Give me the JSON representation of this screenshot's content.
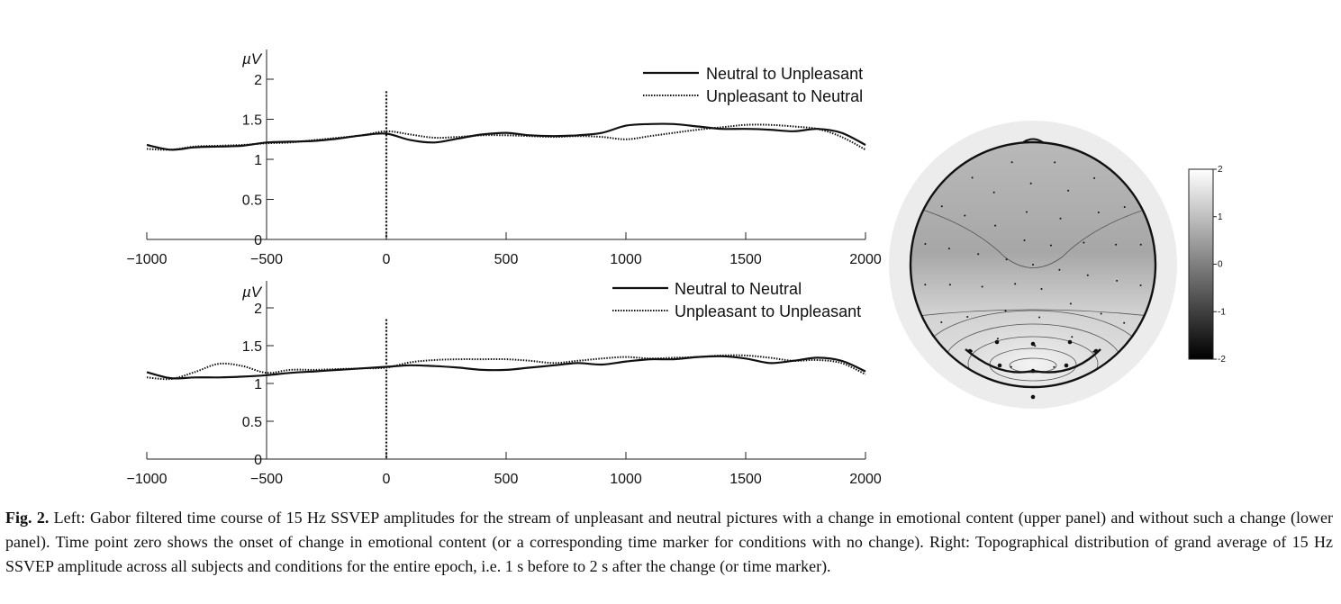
{
  "figure": {
    "caption_label": "Fig. 2.",
    "caption_text": " Left: Gabor filtered time course of 15 Hz SSVEP amplitudes for the stream of unpleasant and neutral pictures with a change in emotional content (upper panel) and without such a change (lower panel). Time point zero shows the onset of change in emotional content (or a corresponding time marker for conditions with no change). Right: Topographical distribution of grand average of 15 Hz SSVEP amplitude across all subjects and conditions for the entire epoch, i.e. 1 s before to 2 s after the change (or time marker)."
  },
  "chart_data": [
    {
      "type": "line",
      "title": "",
      "ylabel": "µV",
      "xlabel": "",
      "xlim": [
        -1000,
        2000
      ],
      "ylim": [
        0,
        2
      ],
      "xticks": [
        "−1000",
        "−500",
        "0",
        "500",
        "1000",
        "1500",
        "2000"
      ],
      "yticks": [
        "0",
        "0.5",
        "1",
        "1.5",
        "2"
      ],
      "legend_position": "top-right",
      "vline_x": 0,
      "x": [
        -1000,
        -900,
        -800,
        -700,
        -600,
        -500,
        -400,
        -300,
        -200,
        -100,
        0,
        100,
        200,
        300,
        400,
        500,
        600,
        700,
        800,
        900,
        1000,
        1100,
        1200,
        1300,
        1400,
        1500,
        1600,
        1700,
        1800,
        1900,
        2000
      ],
      "series": [
        {
          "name": "Neutral to Unpleasant",
          "style": "solid",
          "values": [
            1.18,
            1.12,
            1.15,
            1.16,
            1.17,
            1.21,
            1.22,
            1.23,
            1.26,
            1.3,
            1.32,
            1.24,
            1.21,
            1.26,
            1.31,
            1.33,
            1.3,
            1.29,
            1.3,
            1.33,
            1.42,
            1.44,
            1.44,
            1.41,
            1.38,
            1.38,
            1.37,
            1.35,
            1.38,
            1.33,
            1.18
          ]
        },
        {
          "name": "Unpleasant to Neutral",
          "style": "dotted",
          "values": [
            1.13,
            1.12,
            1.16,
            1.17,
            1.18,
            1.2,
            1.21,
            1.24,
            1.27,
            1.3,
            1.35,
            1.31,
            1.27,
            1.28,
            1.3,
            1.3,
            1.29,
            1.28,
            1.29,
            1.28,
            1.25,
            1.29,
            1.33,
            1.37,
            1.4,
            1.43,
            1.43,
            1.41,
            1.38,
            1.28,
            1.12
          ]
        }
      ]
    },
    {
      "type": "line",
      "title": "",
      "ylabel": "µV",
      "xlabel": "",
      "xlim": [
        -1000,
        2000
      ],
      "ylim": [
        0,
        2
      ],
      "xticks": [
        "−1000",
        "−500",
        "0",
        "500",
        "1000",
        "1500",
        "2000"
      ],
      "yticks": [
        "0",
        "0.5",
        "1",
        "1.5",
        "2"
      ],
      "legend_position": "top-right",
      "vline_x": 0,
      "x": [
        -1000,
        -900,
        -800,
        -700,
        -600,
        -500,
        -400,
        -300,
        -200,
        -100,
        0,
        100,
        200,
        300,
        400,
        500,
        600,
        700,
        800,
        900,
        1000,
        1100,
        1200,
        1300,
        1400,
        1500,
        1600,
        1700,
        1800,
        1900,
        2000
      ],
      "series": [
        {
          "name": "Neutral to Neutral",
          "style": "solid",
          "values": [
            1.15,
            1.07,
            1.08,
            1.08,
            1.09,
            1.11,
            1.14,
            1.16,
            1.18,
            1.2,
            1.22,
            1.24,
            1.23,
            1.21,
            1.18,
            1.18,
            1.21,
            1.24,
            1.27,
            1.25,
            1.29,
            1.32,
            1.32,
            1.35,
            1.36,
            1.33,
            1.27,
            1.3,
            1.34,
            1.3,
            1.16
          ]
        },
        {
          "name": "Unpleasant to Unpleasant",
          "style": "dotted",
          "values": [
            1.08,
            1.06,
            1.15,
            1.26,
            1.23,
            1.14,
            1.18,
            1.18,
            1.19,
            1.2,
            1.21,
            1.28,
            1.31,
            1.32,
            1.32,
            1.32,
            1.3,
            1.27,
            1.3,
            1.33,
            1.35,
            1.33,
            1.34,
            1.35,
            1.37,
            1.37,
            1.34,
            1.3,
            1.31,
            1.27,
            1.12
          ]
        }
      ]
    },
    {
      "type": "heatmap",
      "title": "",
      "colorbar_range": [
        -2,
        2
      ],
      "colorbar_ticks": [
        "2",
        "1",
        "0",
        "-1",
        "-2"
      ],
      "colormap": [
        "#000000",
        "#ffffff"
      ]
    }
  ]
}
